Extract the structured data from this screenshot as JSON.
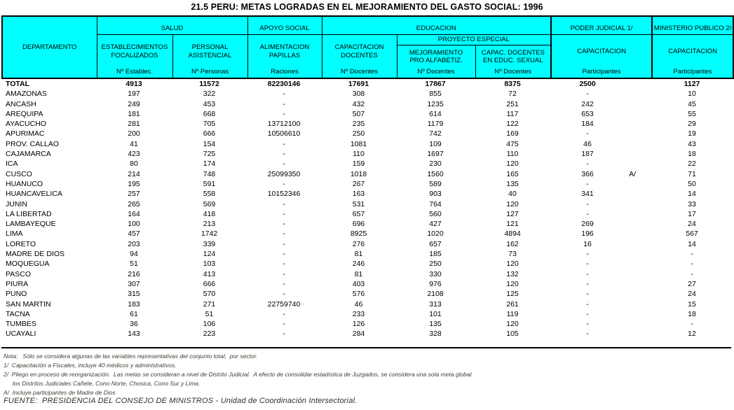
{
  "title": "21.5 PERU: METAS LOGRADAS EN EL MEJORAMIENTO DEL GASTO SOCIAL: 1996",
  "colors": {
    "header_bg": "#00FFFF",
    "border": "#000000"
  },
  "header": {
    "departamento": "DEPARTAMENTO",
    "groups": {
      "salud": "SALUD",
      "apoyo_social": "APOYO SOCIAL",
      "educacion": "EDUCACION",
      "proyecto_especial": "PROYECTO ESPECIAL",
      "poder_judicial": "PODER JUDICIAL 1/",
      "ministerio_publico": "MINISTERIO PUBLICO 2/"
    },
    "cols": {
      "establecimientos": {
        "l1": "ESTABLECIMIENTOS",
        "l2": "FOCALIZADOS",
        "unit": "Nº Establec."
      },
      "personal": {
        "l1": "PERSONAL",
        "l2": "ASISTENCIAL",
        "unit": "Nº Personas"
      },
      "alimentacion": {
        "l1": "ALIMENTACION",
        "l2": "PAPILLAS",
        "unit": "Raciones"
      },
      "capacitacion_docentes": {
        "l1": "CAPACITACION",
        "l2": "DOCENTES",
        "unit": "Nº Docentes"
      },
      "mejoramiento": {
        "l1": "MEJORAMIENTO",
        "l2": "PRO ALFABETIZ.",
        "unit": "Nº Docentes"
      },
      "capac_sexual": {
        "l1": "CAPAC. DOCENTES",
        "l2": "EN EDUC. SEXUAL",
        "unit": "Nº Docentes"
      },
      "poder_capacitacion": {
        "l1": "CAPACITACION",
        "unit": "Participantes"
      },
      "ministerio_capacitacion": {
        "l1": "CAPACITACION",
        "unit": "Participantes"
      }
    }
  },
  "table": {
    "rows": [
      {
        "dept": "TOTAL",
        "bold": true,
        "v": [
          "4913",
          "11572",
          "82230146",
          "17691",
          "17867",
          "8375",
          "2500",
          "1127"
        ]
      },
      {
        "dept": "AMAZONAS",
        "v": [
          "197",
          "322",
          "-",
          "308",
          "855",
          "72",
          "-",
          "10"
        ]
      },
      {
        "dept": "ANCASH",
        "v": [
          "249",
          "453",
          "-",
          "432",
          "1235",
          "251",
          "242",
          "45"
        ]
      },
      {
        "dept": "AREQUIPA",
        "v": [
          "181",
          "668",
          "-",
          "507",
          "614",
          "117",
          "653",
          "55"
        ]
      },
      {
        "dept": "AYACUCHO",
        "v": [
          "281",
          "705",
          "13712100",
          "235",
          "1179",
          "122",
          "184",
          "29"
        ]
      },
      {
        "dept": "APURIMAC",
        "v": [
          "200",
          "666",
          "10506610",
          "250",
          "742",
          "169",
          "-",
          "19"
        ]
      },
      {
        "dept": "PROV. CALLAO",
        "v": [
          "41",
          "154",
          "-",
          "1081",
          "109",
          "475",
          "46",
          "43"
        ]
      },
      {
        "dept": "CAJAMARCA",
        "v": [
          "423",
          "725",
          "-",
          "110",
          "1697",
          "110",
          "187",
          "18"
        ]
      },
      {
        "dept": "ICA",
        "v": [
          "80",
          "174",
          "-",
          "159",
          "230",
          "120",
          "-",
          "22"
        ]
      },
      {
        "dept": "CUSCO",
        "v": [
          "214",
          "748",
          "25099350",
          "1018",
          "1560",
          "165",
          "366",
          "71"
        ],
        "note": "A/",
        "note_col": 6
      },
      {
        "dept": "HUANUCO",
        "v": [
          "195",
          "591",
          "-",
          "267",
          "589",
          "135",
          "-",
          "50"
        ]
      },
      {
        "dept": "HUANCAVELICA",
        "v": [
          "257",
          "558",
          "10152346",
          "163",
          "903",
          "40",
          "341",
          "14"
        ]
      },
      {
        "dept": "JUNIN",
        "v": [
          "265",
          "569",
          "-",
          "531",
          "764",
          "120",
          "-",
          "33"
        ]
      },
      {
        "dept": "LA LIBERTAD",
        "v": [
          "164",
          "418",
          "-",
          "657",
          "560",
          "127",
          "-",
          "17"
        ]
      },
      {
        "dept": "LAMBAYEQUE",
        "v": [
          "100",
          "213",
          "-",
          "696",
          "427",
          "121",
          "269",
          "24"
        ]
      },
      {
        "dept": "LIMA",
        "v": [
          "457",
          "1742",
          "-",
          "8925",
          "1020",
          "4894",
          "196",
          "567"
        ]
      },
      {
        "dept": "LORETO",
        "v": [
          "203",
          "339",
          "-",
          "276",
          "657",
          "162",
          "16",
          "14"
        ]
      },
      {
        "dept": "MADRE DE DIOS",
        "v": [
          "94",
          "124",
          "-",
          "81",
          "185",
          "73",
          "-",
          "-"
        ]
      },
      {
        "dept": "MOQUEGUA",
        "v": [
          "51",
          "103",
          "-",
          "246",
          "250",
          "120",
          "-",
          "-"
        ]
      },
      {
        "dept": "PASCO",
        "v": [
          "216",
          "413",
          "-",
          "81",
          "330",
          "132",
          "-",
          "-"
        ]
      },
      {
        "dept": "PIURA",
        "v": [
          "307",
          "666",
          "-",
          "403",
          "976",
          "120",
          "-",
          "27"
        ]
      },
      {
        "dept": "PUNO",
        "v": [
          "315",
          "570",
          "-",
          "576",
          "2108",
          "125",
          "-",
          "24"
        ]
      },
      {
        "dept": "SAN MARTIN",
        "v": [
          "183",
          "271",
          "22759740",
          "46",
          "313",
          "261",
          "-",
          "15"
        ]
      },
      {
        "dept": "TACNA",
        "v": [
          "61",
          "51",
          "-",
          "233",
          "101",
          "119",
          "-",
          "18"
        ]
      },
      {
        "dept": "TUMBES",
        "v": [
          "36",
          "106",
          "-",
          "126",
          "135",
          "120",
          "-",
          "-"
        ]
      },
      {
        "dept": "UCAYALI",
        "v": [
          "143",
          "223",
          "-",
          "284",
          "328",
          "105",
          "-",
          "12"
        ]
      }
    ]
  },
  "notes": [
    "Nota:   Sólo se considera algunas de las variables representativas del conjunto total,  por sector.",
    "1/  Capacitación a Fiscales, incluye 40 médicos y administrativos.",
    "2/  Pliego en proceso de reorganización.  Las metas se consideran a nivel de Distrito Judicial.  A efecto de consolidar estadística de Juzgados, se considera una sola meta global",
    "los Distritos Judiciales Cañete, Cono Norte, Chosica, Cono Sur y Lima.",
    "A/  Incluye participantes de Madre de Dios"
  ],
  "fuente": "FUENTE:  PRESIDENCIA DEL CONSEJO DE MINISTROS - Unidad de Coordinación Intersectorial."
}
